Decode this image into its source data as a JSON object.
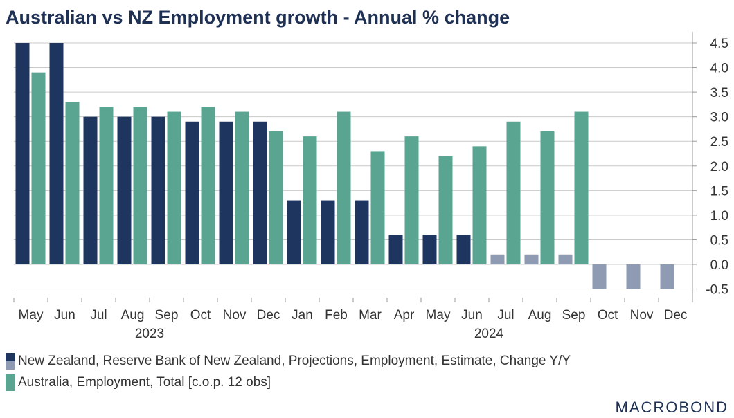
{
  "chart_data": {
    "type": "bar",
    "title": "Australian vs NZ Employment growth - Annual % change",
    "categories": [
      "May",
      "Jun",
      "Jul",
      "Aug",
      "Sep",
      "Oct",
      "Nov",
      "Dec",
      "Jan",
      "Feb",
      "Mar",
      "Apr",
      "May",
      "Jun",
      "Jul",
      "Aug",
      "Sep",
      "Oct",
      "Nov",
      "Dec"
    ],
    "year_labels": [
      {
        "label": "2023",
        "from": 0,
        "to": 7
      },
      {
        "label": "2024",
        "from": 8,
        "to": 19
      }
    ],
    "series": [
      {
        "name": "New Zealand, Reserve Bank of New Zealand, Projections, Employment, Estimate, Change Y/Y",
        "color": "#1e3560",
        "projection_color": "#8e9bb3",
        "values": [
          4.5,
          4.5,
          3.0,
          3.0,
          3.0,
          2.9,
          2.9,
          2.9,
          1.3,
          1.3,
          1.3,
          0.6,
          0.6,
          0.6,
          0.2,
          0.2,
          0.2,
          -0.5,
          -0.5,
          -0.5
        ],
        "projected_from_index": 14
      },
      {
        "name": "Australia, Employment, Total [c.o.p. 12 obs]",
        "color": "#5aa592",
        "values": [
          3.9,
          3.3,
          3.2,
          3.2,
          3.1,
          3.2,
          3.1,
          2.7,
          2.6,
          3.1,
          2.3,
          2.6,
          2.2,
          2.4,
          2.9,
          2.7,
          3.1,
          null,
          null,
          null
        ]
      }
    ],
    "y_ticks": [
      "4.5",
      "4.0",
      "3.5",
      "3.0",
      "2.5",
      "2.0",
      "1.5",
      "1.0",
      "0.5",
      "0.0",
      "-0.5"
    ],
    "ylim": [
      -0.5,
      4.5
    ],
    "y_axis_position": "right",
    "grid": true,
    "legend_position": "bottom-left"
  },
  "logo": "MACROBOND"
}
